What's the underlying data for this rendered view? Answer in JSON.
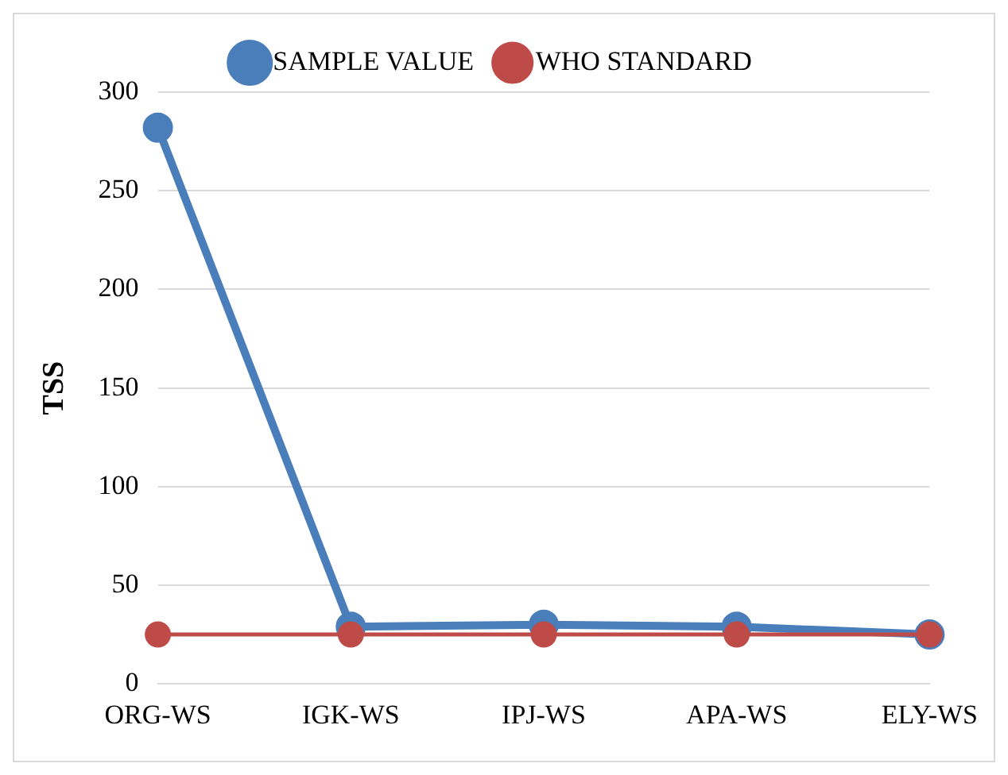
{
  "chart_data": {
    "type": "line",
    "ylabel": "TSS",
    "categories": [
      "ORG-WS",
      "IGK-WS",
      "IPJ-WS",
      "APA-WS",
      "ELY-WS"
    ],
    "series": [
      {
        "name": "SAMPLE VALUE",
        "color": "#4a7ebb",
        "values": [
          282,
          29,
          30,
          29,
          25
        ]
      },
      {
        "name": "WHO STANDARD",
        "color": "#be4b48",
        "values": [
          25,
          25,
          25,
          25,
          25
        ]
      }
    ],
    "ylim": [
      0,
      300
    ],
    "yticks": [
      0,
      50,
      100,
      150,
      200,
      250,
      300
    ],
    "grid": "y",
    "legend": "top",
    "marker": "circle",
    "line_style": "solid"
  }
}
